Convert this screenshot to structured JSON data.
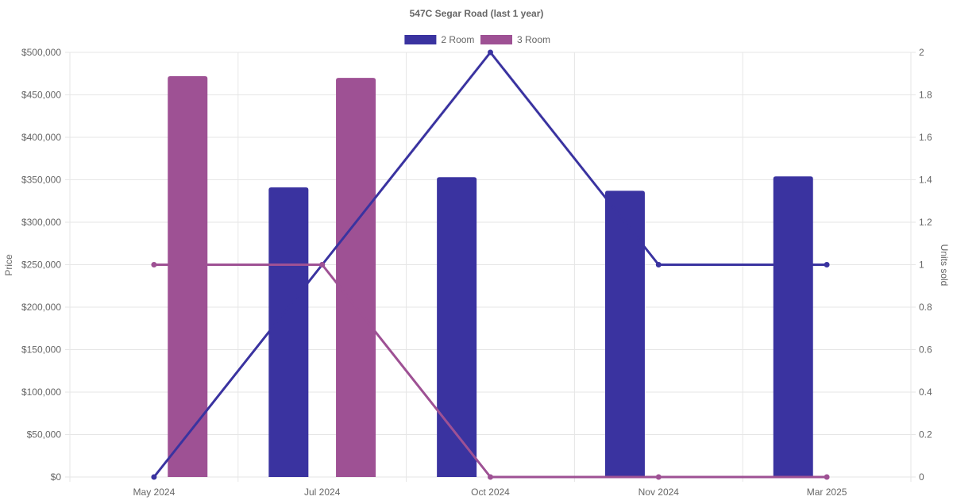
{
  "chart_data": {
    "type": "bar",
    "title": "547C Segar Road (last 1 year)",
    "categories": [
      "May 2024",
      "Jul 2024",
      "Oct 2024",
      "Nov 2024",
      "Mar 2025"
    ],
    "y_left": {
      "label": "Price",
      "range": [
        0,
        500000
      ],
      "ticks": [
        "$0",
        "$50,000",
        "$100,000",
        "$150,000",
        "$200,000",
        "$250,000",
        "$300,000",
        "$350,000",
        "$400,000",
        "$450,000",
        "$500,000"
      ]
    },
    "y_right": {
      "label": "Units sold",
      "range": [
        0,
        2
      ],
      "ticks": [
        "0",
        "0.2",
        "0.4",
        "0.6",
        "0.8",
        "1",
        "1.2",
        "1.4",
        "1.6",
        "1.8",
        "2"
      ]
    },
    "grid": true,
    "legend_position": "top-center",
    "series": [
      {
        "name": "2 Room",
        "color": "#3a33a0",
        "price": [
          null,
          341000,
          353000,
          337000,
          354000
        ],
        "units_sold": [
          0,
          1,
          2,
          1,
          1
        ]
      },
      {
        "name": "3 Room",
        "color": "#9e5194",
        "price": [
          472000,
          470000,
          null,
          null,
          null
        ],
        "units_sold": [
          1,
          1,
          0,
          0,
          0
        ]
      }
    ]
  }
}
